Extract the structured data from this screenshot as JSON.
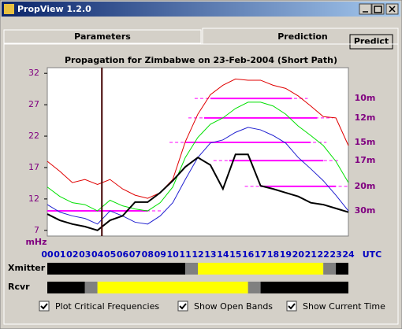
{
  "window": {
    "title": "PropView 1.2.0"
  },
  "tabs": [
    "Parameters",
    "Prediction"
  ],
  "button": "Predict",
  "chart_data": {
    "type": "line",
    "title": "Propagation for Zimbabwe on 23-Feb-2004 (Short Path)",
    "y_unit": "mHz",
    "x_unit": "UTC",
    "categories": [
      "00",
      "01",
      "02",
      "03",
      "04",
      "05",
      "06",
      "07",
      "08",
      "09",
      "10",
      "11",
      "12",
      "13",
      "14",
      "15",
      "16",
      "17",
      "18",
      "19",
      "20",
      "21",
      "22",
      "23",
      "24"
    ],
    "ylim": [
      6.1,
      32.9
    ],
    "yticks": [
      7,
      12,
      17,
      22,
      27,
      32
    ],
    "current_time": 4.35,
    "current_time_color": "#400000",
    "series": [
      {
        "color": "#e00000",
        "values": [
          18,
          16.4,
          14.6,
          15.1,
          14.3,
          15.1,
          13.6,
          12.6,
          12.1,
          13,
          15.1,
          21.1,
          25.5,
          28.6,
          30.1,
          31.1,
          30.9,
          30.9,
          30.1,
          29.6,
          28.4,
          26.8,
          25.1,
          24.9,
          20.5
        ]
      },
      {
        "color": "#00e000",
        "values": [
          13.9,
          12.4,
          11.4,
          11.1,
          10.1,
          11.8,
          10.9,
          10.4,
          10.1,
          11.4,
          13.9,
          18.6,
          21.8,
          23.9,
          24.9,
          26.4,
          27.4,
          27.4,
          26.8,
          25.5,
          23.6,
          22.1,
          20.5,
          18,
          14.6
        ]
      },
      {
        "color": "#2020d0",
        "values": [
          11.1,
          9.9,
          9.3,
          8.9,
          8,
          10.1,
          9.3,
          8.3,
          8,
          9.3,
          11.4,
          15.1,
          18.6,
          20.9,
          21.4,
          22.6,
          23.4,
          23,
          22.1,
          20.9,
          18.6,
          16.8,
          14.9,
          12.6,
          10.1
        ]
      },
      {
        "color": "#000000",
        "values": [
          9.6,
          8.6,
          8,
          7.6,
          7,
          8.6,
          9.3,
          11.5,
          11.5,
          13,
          14.9,
          17.1,
          18.6,
          17.4,
          13.6,
          19.1,
          19.1,
          14.1,
          13.6,
          13,
          12.4,
          11.4,
          11.1,
          10.5,
          9.9
        ]
      }
    ],
    "bands": [
      {
        "label": "10m",
        "freq": 28,
        "open": [
          13,
          19.5
        ]
      },
      {
        "label": "12m",
        "freq": 24.9,
        "open": [
          12.5,
          21.5
        ]
      },
      {
        "label": "15m",
        "freq": 21,
        "open": [
          11,
          21
        ]
      },
      {
        "label": "17m",
        "freq": 18.1,
        "open": [
          14.5,
          22
        ]
      },
      {
        "label": "20m",
        "freq": 14,
        "open": [
          17,
          23
        ]
      },
      {
        "label": "30m",
        "freq": 10.1,
        "open": [
          0,
          8
        ]
      }
    ],
    "band_color": "#ff00ff"
  },
  "schedule": [
    {
      "label": "Xmitter",
      "segments": [
        {
          "start": 0,
          "end": 11,
          "color": "#000000"
        },
        {
          "start": 11,
          "end": 12,
          "color": "#808080"
        },
        {
          "start": 12,
          "end": 22,
          "color": "#ffff00"
        },
        {
          "start": 22,
          "end": 23,
          "color": "#808080"
        },
        {
          "start": 23,
          "end": 24,
          "color": "#000000"
        }
      ]
    },
    {
      "label": "Rcvr",
      "segments": [
        {
          "start": 0,
          "end": 3,
          "color": "#000000"
        },
        {
          "start": 3,
          "end": 4,
          "color": "#808080"
        },
        {
          "start": 4,
          "end": 16,
          "color": "#ffff00"
        },
        {
          "start": 16,
          "end": 17,
          "color": "#808080"
        },
        {
          "start": 17,
          "end": 24,
          "color": "#000000"
        }
      ]
    }
  ],
  "checkboxes": [
    {
      "label": "Plot Critical Frequencies",
      "checked": true
    },
    {
      "label": "Show Open Bands",
      "checked": true
    },
    {
      "label": "Show Current Time",
      "checked": true
    }
  ]
}
